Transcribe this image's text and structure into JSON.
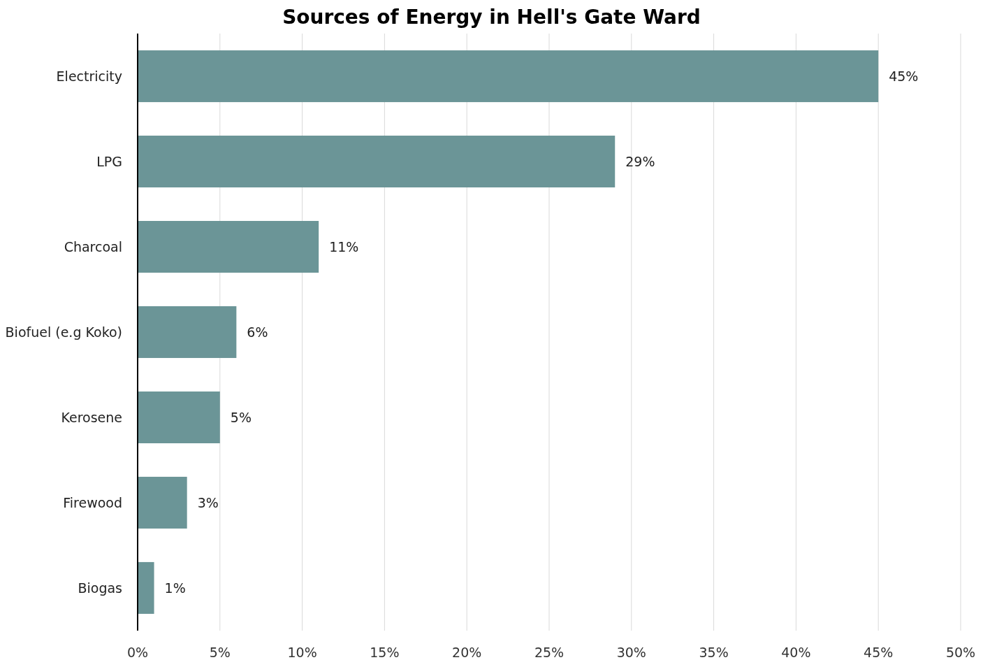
{
  "chart_data": {
    "type": "bar",
    "title": "Sources of Energy in Hell's Gate Ward",
    "orientation": "horizontal",
    "categories": [
      "Electricity",
      "LPG",
      "Charcoal",
      "Biofuel (e.g Koko)",
      "Kerosene",
      "Firewood",
      "Biogas"
    ],
    "values": [
      45,
      29,
      11,
      6,
      5,
      3,
      1
    ],
    "value_labels": [
      "45%",
      "29%",
      "11%",
      "6%",
      "5%",
      "3%",
      "1%"
    ],
    "color": "#6b9597",
    "xlim": [
      0,
      50
    ],
    "xticks": [
      {
        "value": 0,
        "label": "0%"
      },
      {
        "value": 5,
        "label": "5%"
      },
      {
        "value": 10,
        "label": "10%"
      },
      {
        "value": 15,
        "label": "15%"
      },
      {
        "value": 20,
        "label": "20%"
      },
      {
        "value": 25,
        "label": "25%"
      },
      {
        "value": 30,
        "label": "30%"
      },
      {
        "value": 35,
        "label": "35%"
      },
      {
        "value": 40,
        "label": "40%"
      },
      {
        "value": 45,
        "label": "45%"
      },
      {
        "value": 50,
        "label": "50%"
      }
    ],
    "grid": "x"
  }
}
